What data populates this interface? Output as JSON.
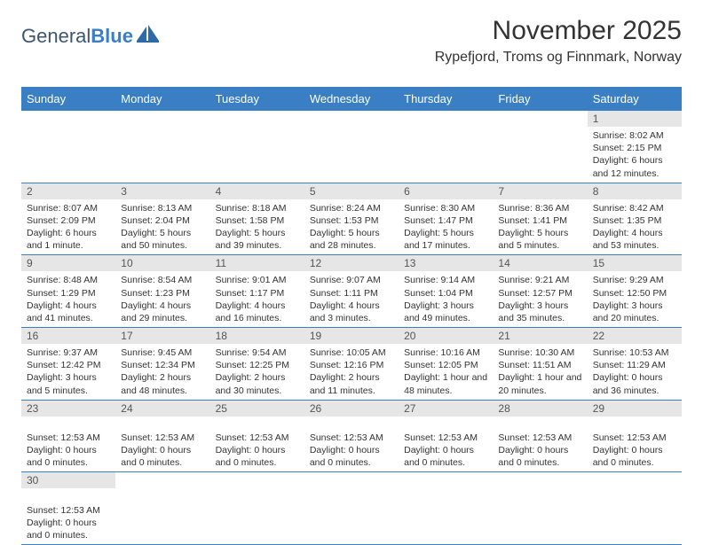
{
  "brand": {
    "general": "General",
    "blue": "Blue"
  },
  "title": "November 2025",
  "location": "Rypefjord, Troms og Finnmark, Norway",
  "colors": {
    "header_bg": "#3a7fc4",
    "header_fg": "#ffffff",
    "daynum_bg": "#e6e6e6",
    "rule": "#3a7fc4",
    "text": "#333333"
  },
  "weekdays": [
    "Sunday",
    "Monday",
    "Tuesday",
    "Wednesday",
    "Thursday",
    "Friday",
    "Saturday"
  ],
  "grid": [
    [
      {
        "n": "",
        "lines": []
      },
      {
        "n": "",
        "lines": []
      },
      {
        "n": "",
        "lines": []
      },
      {
        "n": "",
        "lines": []
      },
      {
        "n": "",
        "lines": []
      },
      {
        "n": "",
        "lines": []
      },
      {
        "n": "1",
        "lines": [
          "Sunrise: 8:02 AM",
          "Sunset: 2:15 PM",
          "Daylight: 6 hours and 12 minutes."
        ]
      }
    ],
    [
      {
        "n": "2",
        "lines": [
          "Sunrise: 8:07 AM",
          "Sunset: 2:09 PM",
          "Daylight: 6 hours and 1 minute."
        ]
      },
      {
        "n": "3",
        "lines": [
          "Sunrise: 8:13 AM",
          "Sunset: 2:04 PM",
          "Daylight: 5 hours and 50 minutes."
        ]
      },
      {
        "n": "4",
        "lines": [
          "Sunrise: 8:18 AM",
          "Sunset: 1:58 PM",
          "Daylight: 5 hours and 39 minutes."
        ]
      },
      {
        "n": "5",
        "lines": [
          "Sunrise: 8:24 AM",
          "Sunset: 1:53 PM",
          "Daylight: 5 hours and 28 minutes."
        ]
      },
      {
        "n": "6",
        "lines": [
          "Sunrise: 8:30 AM",
          "Sunset: 1:47 PM",
          "Daylight: 5 hours and 17 minutes."
        ]
      },
      {
        "n": "7",
        "lines": [
          "Sunrise: 8:36 AM",
          "Sunset: 1:41 PM",
          "Daylight: 5 hours and 5 minutes."
        ]
      },
      {
        "n": "8",
        "lines": [
          "Sunrise: 8:42 AM",
          "Sunset: 1:35 PM",
          "Daylight: 4 hours and 53 minutes."
        ]
      }
    ],
    [
      {
        "n": "9",
        "lines": [
          "Sunrise: 8:48 AM",
          "Sunset: 1:29 PM",
          "Daylight: 4 hours and 41 minutes."
        ]
      },
      {
        "n": "10",
        "lines": [
          "Sunrise: 8:54 AM",
          "Sunset: 1:23 PM",
          "Daylight: 4 hours and 29 minutes."
        ]
      },
      {
        "n": "11",
        "lines": [
          "Sunrise: 9:01 AM",
          "Sunset: 1:17 PM",
          "Daylight: 4 hours and 16 minutes."
        ]
      },
      {
        "n": "12",
        "lines": [
          "Sunrise: 9:07 AM",
          "Sunset: 1:11 PM",
          "Daylight: 4 hours and 3 minutes."
        ]
      },
      {
        "n": "13",
        "lines": [
          "Sunrise: 9:14 AM",
          "Sunset: 1:04 PM",
          "Daylight: 3 hours and 49 minutes."
        ]
      },
      {
        "n": "14",
        "lines": [
          "Sunrise: 9:21 AM",
          "Sunset: 12:57 PM",
          "Daylight: 3 hours and 35 minutes."
        ]
      },
      {
        "n": "15",
        "lines": [
          "Sunrise: 9:29 AM",
          "Sunset: 12:50 PM",
          "Daylight: 3 hours and 20 minutes."
        ]
      }
    ],
    [
      {
        "n": "16",
        "lines": [
          "Sunrise: 9:37 AM",
          "Sunset: 12:42 PM",
          "Daylight: 3 hours and 5 minutes."
        ]
      },
      {
        "n": "17",
        "lines": [
          "Sunrise: 9:45 AM",
          "Sunset: 12:34 PM",
          "Daylight: 2 hours and 48 minutes."
        ]
      },
      {
        "n": "18",
        "lines": [
          "Sunrise: 9:54 AM",
          "Sunset: 12:25 PM",
          "Daylight: 2 hours and 30 minutes."
        ]
      },
      {
        "n": "19",
        "lines": [
          "Sunrise: 10:05 AM",
          "Sunset: 12:16 PM",
          "Daylight: 2 hours and 11 minutes."
        ]
      },
      {
        "n": "20",
        "lines": [
          "Sunrise: 10:16 AM",
          "Sunset: 12:05 PM",
          "Daylight: 1 hour and 48 minutes."
        ]
      },
      {
        "n": "21",
        "lines": [
          "Sunrise: 10:30 AM",
          "Sunset: 11:51 AM",
          "Daylight: 1 hour and 20 minutes."
        ]
      },
      {
        "n": "22",
        "lines": [
          "Sunrise: 10:53 AM",
          "Sunset: 11:29 AM",
          "Daylight: 0 hours and 36 minutes."
        ]
      }
    ],
    [
      {
        "n": "23",
        "lines": [
          "",
          "Sunset: 12:53 AM",
          "Daylight: 0 hours and 0 minutes."
        ]
      },
      {
        "n": "24",
        "lines": [
          "",
          "Sunset: 12:53 AM",
          "Daylight: 0 hours and 0 minutes."
        ]
      },
      {
        "n": "25",
        "lines": [
          "",
          "Sunset: 12:53 AM",
          "Daylight: 0 hours and 0 minutes."
        ]
      },
      {
        "n": "26",
        "lines": [
          "",
          "Sunset: 12:53 AM",
          "Daylight: 0 hours and 0 minutes."
        ]
      },
      {
        "n": "27",
        "lines": [
          "",
          "Sunset: 12:53 AM",
          "Daylight: 0 hours and 0 minutes."
        ]
      },
      {
        "n": "28",
        "lines": [
          "",
          "Sunset: 12:53 AM",
          "Daylight: 0 hours and 0 minutes."
        ]
      },
      {
        "n": "29",
        "lines": [
          "",
          "Sunset: 12:53 AM",
          "Daylight: 0 hours and 0 minutes."
        ]
      }
    ],
    [
      {
        "n": "30",
        "lines": [
          "",
          "Sunset: 12:53 AM",
          "Daylight: 0 hours and 0 minutes."
        ]
      },
      {
        "n": "",
        "lines": []
      },
      {
        "n": "",
        "lines": []
      },
      {
        "n": "",
        "lines": []
      },
      {
        "n": "",
        "lines": []
      },
      {
        "n": "",
        "lines": []
      },
      {
        "n": "",
        "lines": []
      }
    ]
  ]
}
